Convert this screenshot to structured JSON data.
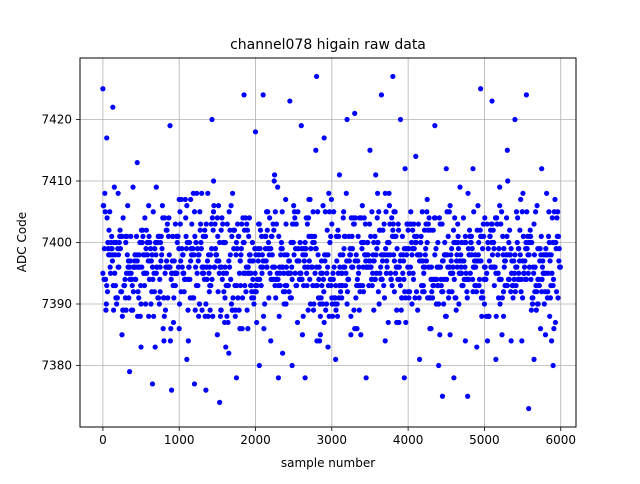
{
  "chart_data": {
    "type": "scatter",
    "title": "channel078 higain raw data",
    "xlabel": "sample number",
    "ylabel": "ADC Code",
    "xlim": [
      -300,
      6200
    ],
    "ylim": [
      7370,
      7430
    ],
    "xticks": [
      0,
      1000,
      2000,
      3000,
      4000,
      5000,
      6000
    ],
    "yticks": [
      7380,
      7390,
      7400,
      7410,
      7420
    ],
    "grid": true,
    "marker_color": "#0000ff",
    "series": [
      {
        "name": "",
        "x": [
          0,
          50,
          100,
          130,
          200,
          250,
          300,
          350,
          400,
          450,
          500,
          550,
          600,
          650,
          700,
          750,
          800,
          850,
          880,
          900,
          950,
          1000,
          1050,
          1100,
          1150,
          1200,
          1250,
          1300,
          1350,
          1400,
          1430,
          1450,
          1500,
          1530,
          1550,
          1600,
          1650,
          1700,
          1750,
          1800,
          1850,
          1900,
          1920,
          1950,
          2000,
          2050,
          2100,
          2150,
          2200,
          2250,
          2300,
          2350,
          2400,
          2450,
          2480,
          2500,
          2550,
          2600,
          2650,
          2700,
          2750,
          2790,
          2800,
          2850,
          2900,
          2950,
          3000,
          3050,
          3100,
          3150,
          3200,
          3250,
          3300,
          3350,
          3400,
          3450,
          3500,
          3550,
          3600,
          3650,
          3700,
          3750,
          3800,
          3820,
          3850,
          3900,
          3950,
          4000,
          4050,
          4100,
          4150,
          4200,
          4250,
          4300,
          4350,
          4400,
          4450,
          4480,
          4500,
          4550,
          4600,
          4650,
          4700,
          4750,
          4780,
          4800,
          4850,
          4900,
          4950,
          4960,
          5000,
          5050,
          5100,
          5150,
          5200,
          5250,
          5300,
          5350,
          5400,
          5450,
          5500,
          5550,
          5580,
          5600,
          5650,
          5700,
          5750,
          5800,
          5850,
          5900
        ],
        "y": [
          7425,
          7417,
          7395,
          7422,
          7408,
          7385,
          7400,
          7379,
          7392,
          7413,
          7383,
          7404,
          7388,
          7377,
          7409,
          7396,
          7384,
          7391,
          7419,
          7376,
          7403,
          7386,
          7395,
          7381,
          7407,
          7377,
          7398,
          7389,
          7376,
          7393,
          7420,
          7410,
          7385,
          7374,
          7402,
          7391,
          7382,
          7408,
          7378,
          7397,
          7424,
          7386,
          7404,
          7392,
          7418,
          7380,
          7424,
          7396,
          7384,
          7411,
          7378,
          7399,
          7390,
          7423,
          7380,
          7406,
          7387,
          7419,
          7378,
          7401,
          7393,
          7415,
          7427,
          7388,
          7417,
          7383,
          7403,
          7381,
          7411,
          7396,
          7420,
          7385,
          7421,
          7395,
          7406,
          7378,
          7415,
          7389,
          7400,
          7424,
          7384,
          7408,
          7427,
          7397,
          7389,
          7420,
          7378,
          7402,
          7390,
          7414,
          7381,
          7393,
          7407,
          7386,
          7419,
          7380,
          7375,
          7398,
          7412,
          7385,
          7378,
          7403,
          7395,
          7384,
          7375,
          7398,
          7412,
          7383,
          7425,
          7401,
          7396,
          7388,
          7423,
          7381,
          7406,
          7392,
          7415,
          7384,
          7420,
          7399,
          7391,
          7424,
          7373,
          7402,
          7381,
          7394,
          7412,
          7385,
          7400,
          7380
        ]
      }
    ]
  }
}
